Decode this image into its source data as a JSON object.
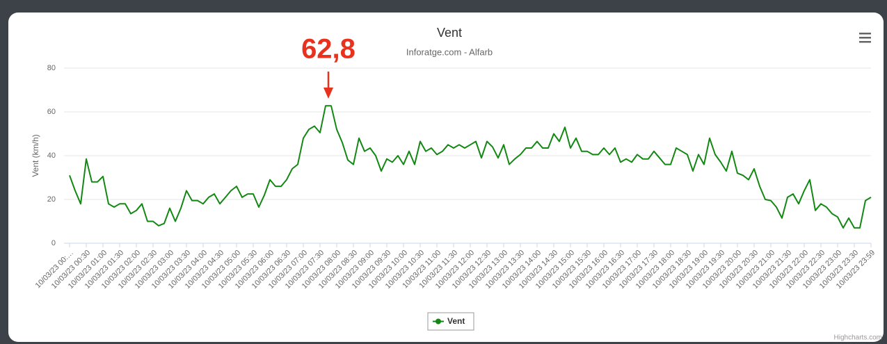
{
  "chart_data": {
    "type": "line",
    "title": "Vent",
    "subtitle": "Inforatge.com - Alfarb",
    "ylabel": "Vent (km/h)",
    "annotation": "62,8",
    "credits": "Highcharts.com",
    "grid": true,
    "ylim": [
      0,
      80
    ],
    "yticks": [
      0,
      20,
      40,
      60,
      80
    ],
    "categories": [
      "10/03/23 00:…",
      null,
      null,
      "10/03/23 00:30",
      null,
      null,
      "10/03/23 01:00",
      null,
      null,
      "10/03/23 01:30",
      null,
      null,
      "10/03/23 02:00",
      null,
      null,
      "10/03/23 02:30",
      null,
      null,
      "10/03/23 03:00",
      null,
      null,
      "10/03/23 03:30",
      null,
      null,
      "10/03/23 04:00",
      null,
      null,
      "10/03/23 04:30",
      null,
      null,
      "10/03/23 05:00",
      null,
      null,
      "10/03/23 05:30",
      null,
      null,
      "10/03/23 06:00",
      null,
      null,
      "10/03/23 06:30",
      null,
      null,
      "10/03/23 07:00",
      null,
      null,
      "10/03/23 07:30",
      null,
      null,
      "10/03/23 08:00",
      null,
      null,
      "10/03/23 08:30",
      null,
      null,
      "10/03/23 09:00",
      null,
      null,
      "10/03/23 09:30",
      null,
      null,
      "10/03/23 10:00",
      null,
      null,
      "10/03/23 10:30",
      null,
      null,
      "10/03/23 11:00",
      null,
      null,
      "10/03/23 11:30",
      null,
      null,
      "10/03/23 12:00",
      null,
      null,
      "10/03/23 12:30",
      null,
      null,
      "10/03/23 13:00",
      null,
      null,
      "10/03/23 13:30",
      null,
      null,
      "10/03/23 14:00",
      null,
      null,
      "10/03/23 14:30",
      null,
      null,
      "10/03/23 15:00",
      null,
      null,
      "10/03/23 15:30",
      null,
      null,
      "10/03/23 16:00",
      null,
      null,
      "10/03/23 16:30",
      null,
      null,
      "10/03/23 17:00",
      null,
      null,
      "10/03/23 17:30",
      null,
      null,
      "10/03/23 18:00",
      null,
      null,
      "10/03/23 18:30",
      null,
      null,
      "10/03/23 19:00",
      null,
      null,
      "10/03/23 19:30",
      null,
      null,
      "10/03/23 20:00",
      null,
      null,
      "10/03/23 20:30",
      null,
      null,
      "10/03/23 21:00",
      null,
      null,
      "10/03/23 21:30",
      null,
      null,
      "10/03/23 22:00",
      null,
      null,
      "10/03/23 22:30",
      null,
      null,
      "10/03/23 23:00",
      null,
      null,
      "10/03/23 23:30",
      null,
      null,
      "10/03/23 23:59"
    ],
    "series": [
      {
        "name": "Vent",
        "color": "#128812",
        "values": [
          31,
          24,
          18,
          38.5,
          28,
          28,
          30.5,
          18,
          16.5,
          18,
          18,
          13.5,
          15,
          18,
          10,
          10,
          8,
          9,
          16,
          10,
          16,
          24,
          19.5,
          19.5,
          18,
          21,
          22.5,
          18,
          21,
          24,
          26,
          21,
          22.5,
          22.5,
          16.5,
          22,
          29,
          26,
          26,
          29,
          34,
          36,
          48,
          52,
          53.5,
          50.5,
          62.8,
          62.8,
          52,
          46,
          38,
          36,
          48,
          42,
          43.5,
          40,
          33,
          38.5,
          37,
          40,
          36,
          42,
          36,
          46.5,
          42,
          43.5,
          40.5,
          42,
          45,
          43.5,
          45,
          43.5,
          45,
          46.5,
          39,
          46.5,
          44,
          39,
          45,
          36,
          38.5,
          40.5,
          43.5,
          43.5,
          46.5,
          43.5,
          43.5,
          50,
          46.5,
          53,
          43.5,
          48,
          42,
          42,
          40.5,
          40.5,
          43.5,
          40.5,
          43.5,
          37,
          38.5,
          37,
          40.5,
          38.5,
          38.5,
          42,
          39,
          36,
          36,
          43.5,
          42,
          40.5,
          33,
          40.5,
          36,
          48,
          40.5,
          37,
          33,
          42,
          32,
          31,
          29,
          34,
          26,
          20,
          19.5,
          16.5,
          11.5,
          21,
          22.5,
          18,
          24,
          29,
          15,
          18,
          16.5,
          13.5,
          12,
          7,
          11.5,
          7,
          7,
          19.5,
          21
        ]
      }
    ]
  }
}
